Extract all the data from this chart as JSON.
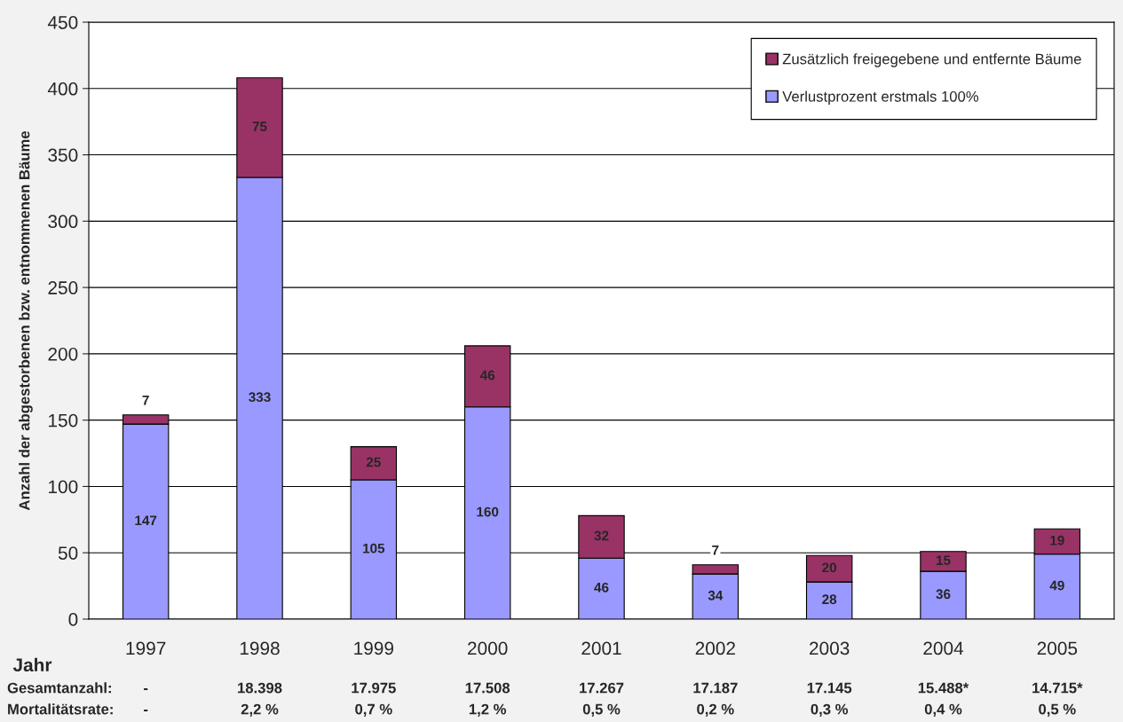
{
  "chart_data": {
    "type": "bar",
    "stacked": true,
    "ylabel": "Anzahl der abgestorbenen bzw. entnommenen Bäume",
    "xlabel": "Jahr",
    "categories": [
      "1997",
      "1998",
      "1999",
      "2000",
      "2001",
      "2002",
      "2003",
      "2004",
      "2005"
    ],
    "series": [
      {
        "name": "Verlustprozent erstmals 100%",
        "color": "#9999ff",
        "values": [
          147,
          333,
          105,
          160,
          46,
          34,
          28,
          36,
          49
        ]
      },
      {
        "name": "Zusätzlich freigegebene und entfernte Bäume",
        "color": "#993366",
        "values": [
          7,
          75,
          25,
          46,
          32,
          7,
          20,
          15,
          19
        ]
      }
    ],
    "ylim": [
      0,
      450
    ],
    "yticks": [
      0,
      50,
      100,
      150,
      200,
      250,
      300,
      350,
      400,
      450
    ],
    "grid": "y",
    "legend": "top right",
    "data_labels": true,
    "annotations": [
      "Gesamtanzahl:",
      "-",
      "18.398",
      "17.975",
      "17.508",
      "17.267",
      "17.187",
      "17.145",
      "15.488*",
      "14.715*",
      "Mortalitätsrate:",
      "-",
      "2,2 %",
      "0,7 %",
      "1,2 %",
      "0,5 %",
      "0,2 %",
      "0,3 %",
      "0,4 %",
      "0,5 %"
    ]
  }
}
